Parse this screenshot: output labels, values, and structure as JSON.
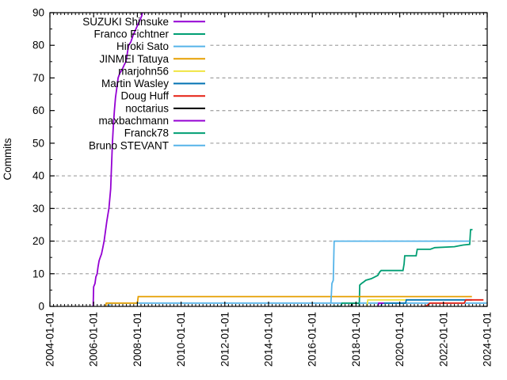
{
  "chart_data": {
    "type": "line",
    "title": "",
    "ylabel": "Commits",
    "xlabel": "",
    "ylim": [
      0,
      90
    ],
    "xlim": [
      2004,
      2024
    ],
    "grid": "horizontal-dashed",
    "grid_values": [
      10,
      20,
      30,
      40,
      50,
      60,
      70,
      80
    ],
    "grid_color": "#a8a8a8",
    "axis_color": "#000000",
    "background_color": "#ffffff",
    "legend_position": "top-left-inside",
    "y_major_ticks": [
      0,
      10,
      20,
      30,
      40,
      50,
      60,
      70,
      80,
      90
    ],
    "y_tick_labels": [
      "0",
      "10",
      "20",
      "30",
      "40",
      "50",
      "60",
      "70",
      "80",
      "90"
    ],
    "y_minor_tick_step": 5,
    "x_major_ticks": [
      {
        "year": 2004,
        "label": "2004-01-01"
      },
      {
        "year": 2006,
        "label": "2006-01-01"
      },
      {
        "year": 2008,
        "label": "2008-01-01"
      },
      {
        "year": 2010,
        "label": "2010-01-01"
      },
      {
        "year": 2012,
        "label": "2012-01-01"
      },
      {
        "year": 2014,
        "label": "2014-01-01"
      },
      {
        "year": 2016,
        "label": "2016-01-01"
      },
      {
        "year": 2018,
        "label": "2018-01-01"
      },
      {
        "year": 2020,
        "label": "2020-01-01"
      },
      {
        "year": 2022,
        "label": "2022-01-01"
      },
      {
        "year": 2024,
        "label": "2024-01-01"
      }
    ],
    "x_minor_ticks_per_year": 6,
    "series": [
      {
        "name": "SUZUKI Shinsuke",
        "color": "#9400d3",
        "points": [
          [
            2005.98,
            0
          ],
          [
            2006.0,
            6
          ],
          [
            2006.06,
            7
          ],
          [
            2006.1,
            9
          ],
          [
            2006.16,
            10
          ],
          [
            2006.2,
            12
          ],
          [
            2006.25,
            14
          ],
          [
            2006.3,
            15
          ],
          [
            2006.36,
            16
          ],
          [
            2006.42,
            18
          ],
          [
            2006.48,
            20
          ],
          [
            2006.54,
            23
          ],
          [
            2006.6,
            26
          ],
          [
            2006.65,
            28
          ],
          [
            2006.7,
            30
          ],
          [
            2006.74,
            33
          ],
          [
            2006.78,
            36
          ],
          [
            2006.8,
            40
          ],
          [
            2006.83,
            45
          ],
          [
            2006.86,
            50
          ],
          [
            2006.9,
            55
          ],
          [
            2006.95,
            60
          ],
          [
            2007.0,
            64
          ],
          [
            2007.06,
            67
          ],
          [
            2007.12,
            70
          ],
          [
            2007.2,
            71.5
          ],
          [
            2007.3,
            72.5
          ],
          [
            2007.4,
            74
          ],
          [
            2007.48,
            75
          ],
          [
            2007.55,
            78
          ],
          [
            2007.6,
            80
          ],
          [
            2007.7,
            81
          ],
          [
            2007.8,
            83
          ],
          [
            2007.9,
            84.5
          ],
          [
            2008.0,
            86
          ],
          [
            2008.1,
            87.5
          ],
          [
            2008.2,
            89
          ],
          [
            2008.28,
            92
          ]
        ]
      },
      {
        "name": "Franco Fichtner",
        "color": "#009e73",
        "points": [
          [
            2018.15,
            0
          ],
          [
            2018.17,
            6.5
          ],
          [
            2018.25,
            7
          ],
          [
            2018.35,
            7.5
          ],
          [
            2018.45,
            8
          ],
          [
            2018.7,
            8.5
          ],
          [
            2018.85,
            9
          ],
          [
            2019.0,
            9.5
          ],
          [
            2019.08,
            10.5
          ],
          [
            2019.15,
            11
          ],
          [
            2020.15,
            11
          ],
          [
            2020.2,
            13
          ],
          [
            2020.23,
            15.5
          ],
          [
            2020.75,
            15.5
          ],
          [
            2020.8,
            17.5
          ],
          [
            2021.4,
            17.5
          ],
          [
            2021.6,
            18
          ],
          [
            2022.5,
            18.3
          ],
          [
            2022.9,
            18.8
          ],
          [
            2023.2,
            19
          ],
          [
            2023.24,
            23.5
          ],
          [
            2023.33,
            23.5
          ]
        ]
      },
      {
        "name": "Hiroki Sato",
        "color": "#56b4e9",
        "points": [
          [
            2006.72,
            0
          ],
          [
            2006.75,
            1
          ],
          [
            2023.97,
            1
          ]
        ]
      },
      {
        "name": "JINMEI Tatuya",
        "color": "#e69f00",
        "points": [
          [
            2006.55,
            0
          ],
          [
            2006.58,
            1
          ],
          [
            2008.0,
            1
          ],
          [
            2008.04,
            3
          ],
          [
            2023.3,
            3
          ]
        ]
      },
      {
        "name": "marjohn56",
        "color": "#f0e442",
        "points": [
          [
            2018.5,
            0
          ],
          [
            2018.54,
            2
          ],
          [
            2020.3,
            2
          ]
        ]
      },
      {
        "name": "Martin Wasley",
        "color": "#0072b2",
        "points": [
          [
            2019.15,
            0
          ],
          [
            2019.18,
            1
          ],
          [
            2020.27,
            1
          ],
          [
            2020.3,
            2
          ],
          [
            2023.3,
            2
          ]
        ]
      },
      {
        "name": "Doug Huff",
        "color": "#e51e10",
        "points": [
          [
            2020.95,
            0
          ],
          [
            2021.2,
            0
          ],
          [
            2021.38,
            1
          ],
          [
            2022.95,
            1
          ],
          [
            2023.02,
            2
          ],
          [
            2023.83,
            2
          ]
        ]
      },
      {
        "name": "noctarius",
        "color": "#000000",
        "points": [
          [
            2017.78,
            0
          ],
          [
            2017.82,
            1
          ],
          [
            2018.15,
            1
          ]
        ]
      },
      {
        "name": "maxbachmann",
        "color": "#9400d3",
        "points": [
          [
            2019.0,
            0
          ],
          [
            2019.04,
            1
          ],
          [
            2019.27,
            1
          ]
        ]
      },
      {
        "name": "Franck78",
        "color": "#009e73",
        "points": [
          [
            2016.9,
            0
          ],
          [
            2017.3,
            0
          ],
          [
            2017.36,
            1
          ],
          [
            2018.15,
            1
          ]
        ]
      },
      {
        "name": "Bruno STEVANT",
        "color": "#56b4e9",
        "points": [
          [
            2016.85,
            1
          ],
          [
            2016.9,
            7
          ],
          [
            2016.96,
            8
          ],
          [
            2017.0,
            20
          ],
          [
            2023.2,
            20
          ]
        ]
      }
    ]
  }
}
